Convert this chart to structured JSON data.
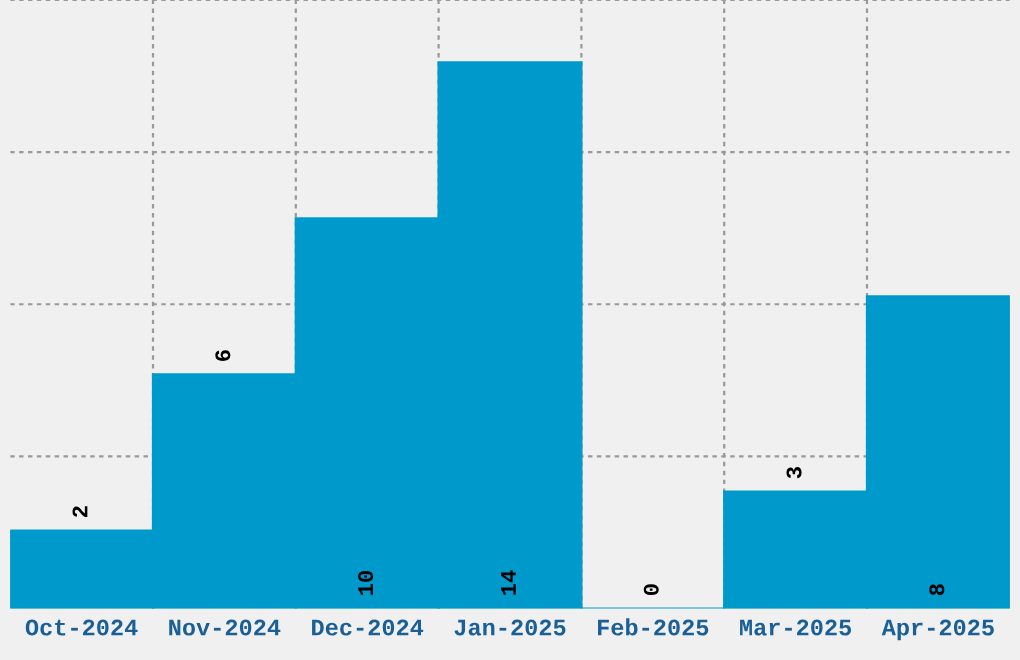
{
  "chart_data": {
    "type": "bar",
    "categories": [
      "Oct-2024",
      "Nov-2024",
      "Dec-2024",
      "Jan-2025",
      "Feb-2025",
      "Mar-2025",
      "Apr-2025"
    ],
    "values": [
      2,
      6,
      10,
      14,
      0,
      3,
      8
    ],
    "color": "#0099cc",
    "data_labels": true,
    "grid": true,
    "tick_labels": "x",
    "ylim": [
      0,
      15.6
    ],
    "yticks": [
      {
        "value": 3.9,
        "label": null
      },
      {
        "value": 7.8,
        "label": null
      },
      {
        "value": 11.7,
        "label": null
      },
      {
        "value": 15.6,
        "label": null
      }
    ]
  }
}
